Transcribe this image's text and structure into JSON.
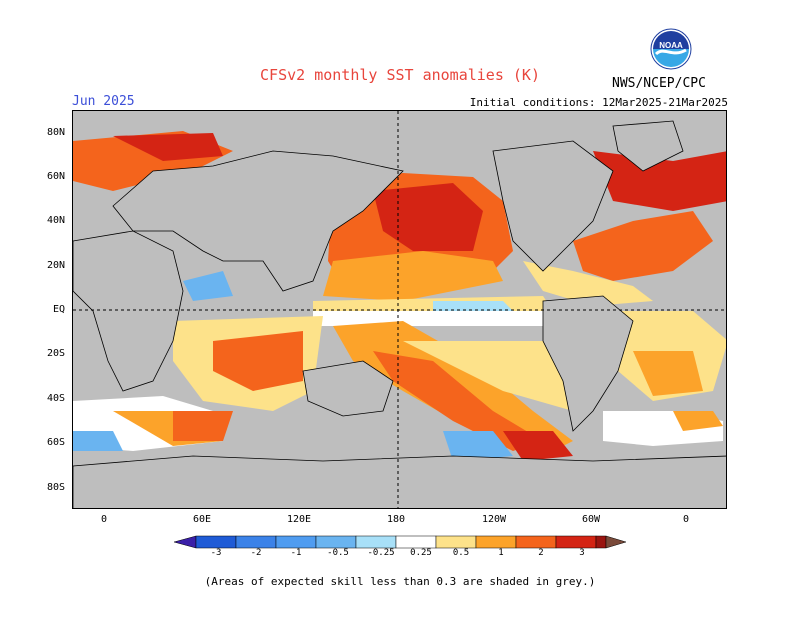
{
  "header": {
    "title": "CFSv2 monthly SST anomalies (K)",
    "month": "Jun 2025",
    "initial_conditions": "Initial conditions: 12Mar2025-21Mar2025",
    "agency": "NWS/NCEP/CPC",
    "logo_text": "NOAA"
  },
  "map": {
    "lat_labels": [
      "80N",
      "60N",
      "40N",
      "20N",
      "EQ",
      "20S",
      "40S",
      "60S",
      "80S"
    ],
    "lon_labels": [
      "0",
      "60E",
      "120E",
      "180",
      "120W",
      "60W",
      "0"
    ],
    "colors": {
      "land": "#bebebe",
      "ocean_neutral": "#ffffff",
      "low_skill": "#bebebe"
    }
  },
  "colorbar": {
    "labels": [
      "-3",
      "-2",
      "-1",
      "-0.5",
      "-0.25",
      "0.25",
      "0.5",
      "1",
      "2",
      "3"
    ],
    "colors": [
      "#3a1fa8",
      "#1f5bd6",
      "#3b82e8",
      "#6ab4f0",
      "#a8e0f8",
      "#ffffff",
      "#fde28a",
      "#fca32a",
      "#f4641c",
      "#d42414",
      "#9a1410",
      "#7a4a3a"
    ]
  },
  "footnote": "(Areas of expected skill less than 0.3 are shaded in grey.)"
}
